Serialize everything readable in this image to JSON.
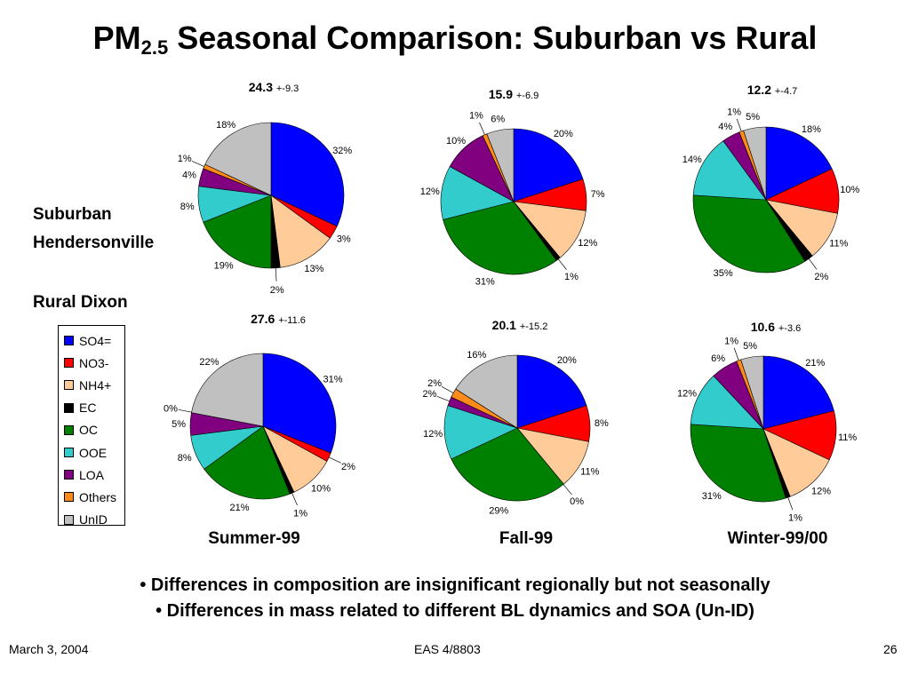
{
  "title": {
    "main": "PM",
    "sub": "2.5",
    "rest": " Seasonal Comparison: Suburban vs Rural"
  },
  "row_labels": {
    "suburban_line1": "Suburban",
    "suburban_line2": "Hendersonville",
    "rural": "Rural Dixon"
  },
  "seasons": [
    "Summer-99",
    "Fall-99",
    "Winter-99/00"
  ],
  "colors": {
    "SO4=": "#0000ff",
    "NO3-": "#ff0000",
    "NH4+": "#ffcc99",
    "EC": "#000000",
    "OC": "#008000",
    "OOE": "#33cccc",
    "LOA": "#800080",
    "Others": "#ff8c1a",
    "UnID": "#c0c0c0"
  },
  "chart_data": [
    {
      "type": "pie",
      "site": "Suburban Hendersonville",
      "season": "Summer-99",
      "mass": "24.3",
      "uncertainty": "+-9.3",
      "categories": [
        "SO4=",
        "NO3-",
        "NH4+",
        "EC",
        "OC",
        "OOE",
        "LOA",
        "Others",
        "UnID"
      ],
      "values": [
        32,
        3,
        13,
        2,
        19,
        8,
        4,
        1,
        18
      ]
    },
    {
      "type": "pie",
      "site": "Suburban Hendersonville",
      "season": "Fall-99",
      "mass": "15.9",
      "uncertainty": "+-6.9",
      "categories": [
        "SO4=",
        "NO3-",
        "NH4+",
        "EC",
        "OC",
        "OOE",
        "LOA",
        "Others",
        "UnID"
      ],
      "values": [
        20,
        7,
        12,
        1,
        31,
        12,
        10,
        1,
        6
      ]
    },
    {
      "type": "pie",
      "site": "Suburban Hendersonville",
      "season": "Winter-99/00",
      "mass": "12.2",
      "uncertainty": "+-4.7",
      "categories": [
        "SO4=",
        "NO3-",
        "NH4+",
        "EC",
        "OC",
        "OOE",
        "LOA",
        "Others",
        "UnID"
      ],
      "values": [
        18,
        10,
        11,
        2,
        35,
        14,
        4,
        1,
        5
      ]
    },
    {
      "type": "pie",
      "site": "Rural Dixon",
      "season": "Summer-99",
      "mass": "27.6",
      "uncertainty": "+-11.6",
      "categories": [
        "SO4=",
        "NO3-",
        "NH4+",
        "EC",
        "OC",
        "OOE",
        "LOA",
        "Others",
        "UnID"
      ],
      "values": [
        31,
        2,
        10,
        1,
        21,
        8,
        5,
        0,
        22
      ]
    },
    {
      "type": "pie",
      "site": "Rural Dixon",
      "season": "Fall-99",
      "mass": "20.1",
      "uncertainty": "+-15.2",
      "categories": [
        "SO4=",
        "NO3-",
        "NH4+",
        "EC",
        "OC",
        "OOE",
        "LOA",
        "Others",
        "UnID"
      ],
      "values": [
        20,
        8,
        11,
        0,
        29,
        12,
        2,
        2,
        16
      ]
    },
    {
      "type": "pie",
      "site": "Rural Dixon",
      "season": "Winter-99/00",
      "mass": "10.6",
      "uncertainty": "+-3.6",
      "categories": [
        "SO4=",
        "NO3-",
        "NH4+",
        "EC",
        "OC",
        "OOE",
        "LOA",
        "Others",
        "UnID"
      ],
      "values": [
        21,
        11,
        12,
        1,
        31,
        12,
        6,
        1,
        5
      ]
    }
  ],
  "legend": [
    "SO4=",
    "NO3-",
    "NH4+",
    "EC",
    "OC",
    "OOE",
    "LOA",
    "Others",
    "UnID"
  ],
  "bullets": [
    "• Differences in composition are insignificant regionally but not seasonally",
    "• Differences in mass related to different BL dynamics and SOA (Un-ID)"
  ],
  "footer": {
    "date": "March 3, 2004",
    "course": "EAS 4/8803",
    "page": "26"
  }
}
